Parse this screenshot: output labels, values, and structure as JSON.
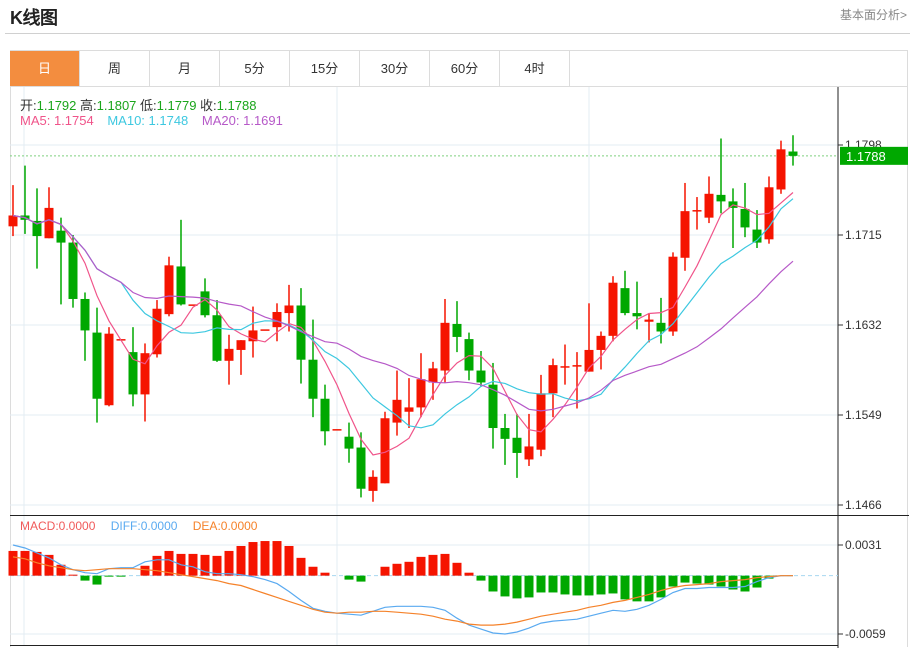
{
  "header": {
    "title": "K线图",
    "link": "基本面分析>"
  },
  "tabs": [
    {
      "label": "日",
      "active": true
    },
    {
      "label": "周"
    },
    {
      "label": "月"
    },
    {
      "label": "5分"
    },
    {
      "label": "15分"
    },
    {
      "label": "30分"
    },
    {
      "label": "60分"
    },
    {
      "label": "4时"
    }
  ],
  "ohlc_legend": [
    {
      "key": "开:",
      "value": "1.1792"
    },
    {
      "key": "高:",
      "value": "1.1807"
    },
    {
      "key": "低:",
      "value": "1.1779"
    },
    {
      "key": "收:",
      "value": "1.1788"
    }
  ],
  "ma_legend": [
    {
      "text": "MA5: 1.1754",
      "color": "#f0548a"
    },
    {
      "text": "MA10: 1.1748",
      "color": "#3dc8e0"
    },
    {
      "text": "MA20: 1.1691",
      "color": "#b659c8"
    }
  ],
  "macd_legend": [
    {
      "text": "MACD:0.0000",
      "color": "#f05a5a"
    },
    {
      "text": "DIFF:0.0000",
      "color": "#5aaaf0"
    },
    {
      "text": "DEA:0.0000",
      "color": "#f5822a"
    }
  ],
  "colors": {
    "up": "#f51400",
    "down": "#00a800",
    "last_price_bg": "#00a800",
    "active_tab": "#f38d3f",
    "grid": "#e3ecf3"
  },
  "chart_data": [
    {
      "type": "candlestick",
      "ylim": [
        1.1466,
        1.1798
      ],
      "y_ticks": [
        "1.1798",
        "1.1715",
        "1.1632",
        "1.1549",
        "1.1466"
      ],
      "last_price": "1.1788",
      "grid": true,
      "ma_periods": [
        5,
        10,
        20
      ],
      "ohlc": [
        [
          1.1723,
          1.1761,
          1.1714,
          1.1733
        ],
        [
          1.1733,
          1.1779,
          1.1716,
          1.1729
        ],
        [
          1.1728,
          1.1758,
          1.1684,
          1.1714
        ],
        [
          1.1712,
          1.1759,
          1.1712,
          1.174
        ],
        [
          1.1719,
          1.1731,
          1.1651,
          1.1708
        ],
        [
          1.1708,
          1.1715,
          1.1648,
          1.1656
        ],
        [
          1.1656,
          1.1662,
          1.1599,
          1.1627
        ],
        [
          1.1625,
          1.1648,
          1.1542,
          1.1564
        ],
        [
          1.1558,
          1.163,
          1.1557,
          1.1624
        ],
        [
          1.1618,
          1.1619,
          1.1618,
          1.1619
        ],
        [
          1.1607,
          1.163,
          1.1557,
          1.1568
        ],
        [
          1.1568,
          1.1615,
          1.1543,
          1.1606
        ],
        [
          1.1605,
          1.1655,
          1.1602,
          1.1647
        ],
        [
          1.1642,
          1.1695,
          1.164,
          1.1687
        ],
        [
          1.1686,
          1.1729,
          1.165,
          1.1651
        ],
        [
          1.1651,
          1.1651,
          1.1651,
          1.1651
        ],
        [
          1.1663,
          1.1675,
          1.1639,
          1.1641
        ],
        [
          1.1641,
          1.1655,
          1.1598,
          1.1599
        ],
        [
          1.1599,
          1.1623,
          1.1577,
          1.161
        ],
        [
          1.1609,
          1.1618,
          1.1586,
          1.1618
        ],
        [
          1.1617,
          1.1649,
          1.1602,
          1.1627
        ],
        [
          1.1628,
          1.1628,
          1.1628,
          1.1628
        ],
        [
          1.163,
          1.1652,
          1.1617,
          1.1644
        ],
        [
          1.1643,
          1.1669,
          1.1626,
          1.165
        ],
        [
          1.165,
          1.1666,
          1.1578,
          1.16
        ],
        [
          1.16,
          1.1637,
          1.1547,
          1.1564
        ],
        [
          1.1564,
          1.1577,
          1.1521,
          1.1534
        ],
        [
          1.1536,
          1.1536,
          1.1536,
          1.1536
        ],
        [
          1.1529,
          1.1542,
          1.1505,
          1.1518
        ],
        [
          1.1519,
          1.1533,
          1.1473,
          1.1481
        ],
        [
          1.1479,
          1.1498,
          1.1469,
          1.1492
        ],
        [
          1.1486,
          1.1552,
          1.1486,
          1.1546
        ],
        [
          1.1542,
          1.159,
          1.153,
          1.1563
        ],
        [
          1.1552,
          1.1583,
          1.1537,
          1.1556
        ],
        [
          1.1556,
          1.1606,
          1.1547,
          1.1582
        ],
        [
          1.1579,
          1.1598,
          1.1563,
          1.1592
        ],
        [
          1.159,
          1.1656,
          1.1579,
          1.1634
        ],
        [
          1.1633,
          1.1654,
          1.1607,
          1.1621
        ],
        [
          1.1619,
          1.1625,
          1.1581,
          1.159
        ],
        [
          1.159,
          1.1608,
          1.1575,
          1.1579
        ],
        [
          1.1577,
          1.1597,
          1.1518,
          1.1537
        ],
        [
          1.1537,
          1.155,
          1.1503,
          1.1527
        ],
        [
          1.1528,
          1.155,
          1.1491,
          1.1514
        ],
        [
          1.1508,
          1.155,
          1.1502,
          1.152
        ],
        [
          1.1517,
          1.1586,
          1.1511,
          1.1569
        ],
        [
          1.1569,
          1.1601,
          1.1547,
          1.1595
        ],
        [
          1.1594,
          1.1614,
          1.1577,
          1.1594
        ],
        [
          1.1595,
          1.1607,
          1.1555,
          1.1595
        ],
        [
          1.1589,
          1.1652,
          1.1589,
          1.1609
        ],
        [
          1.1609,
          1.1626,
          1.1591,
          1.1622
        ],
        [
          1.1622,
          1.1677,
          1.1617,
          1.1671
        ],
        [
          1.1666,
          1.1682,
          1.1641,
          1.1643
        ],
        [
          1.1643,
          1.1672,
          1.1628,
          1.164
        ],
        [
          1.1635,
          1.1643,
          1.1616,
          1.1637
        ],
        [
          1.1634,
          1.1657,
          1.1615,
          1.1626
        ],
        [
          1.1626,
          1.1699,
          1.1622,
          1.1695
        ],
        [
          1.1694,
          1.1763,
          1.1682,
          1.1737
        ],
        [
          1.1738,
          1.175,
          1.172,
          1.1738
        ],
        [
          1.1731,
          1.1769,
          1.1726,
          1.1753
        ],
        [
          1.1752,
          1.1804,
          1.1735,
          1.1746
        ],
        [
          1.1746,
          1.1758,
          1.1703,
          1.174
        ],
        [
          1.1739,
          1.1763,
          1.1713,
          1.1722
        ],
        [
          1.172,
          1.1738,
          1.1703,
          1.1708
        ],
        [
          1.1711,
          1.1769,
          1.1707,
          1.1759
        ],
        [
          1.1757,
          1.1802,
          1.1753,
          1.1794
        ],
        [
          1.1792,
          1.1807,
          1.1779,
          1.1788
        ]
      ]
    },
    {
      "type": "macd",
      "ylim": [
        -0.0059,
        0.0031
      ],
      "y_ticks": [
        "0.0031",
        "-0.0059"
      ],
      "macd": [
        0.0025,
        0.0025,
        0.0024,
        0.0021,
        0.0011,
        0.0001,
        -0.0005,
        -0.0009,
        -0.0001,
        -0.0001,
        0.0,
        0.001,
        0.002,
        0.0025,
        0.0022,
        0.0022,
        0.0021,
        0.002,
        0.0025,
        0.003,
        0.0034,
        0.0035,
        0.0035,
        0.003,
        0.0018,
        0.0009,
        0.0003,
        0.0,
        -0.0004,
        -0.0006,
        0.0,
        0.0009,
        0.0012,
        0.0014,
        0.0019,
        0.0021,
        0.0022,
        0.0013,
        0.0003,
        -0.0005,
        -0.0016,
        -0.0021,
        -0.0023,
        -0.0022,
        -0.0017,
        -0.0017,
        -0.0019,
        -0.002,
        -0.002,
        -0.0019,
        -0.0018,
        -0.0024,
        -0.0026,
        -0.0026,
        -0.0022,
        -0.0011,
        -0.0007,
        -0.0008,
        -0.0009,
        -0.0011,
        -0.0014,
        -0.0016,
        -0.0012,
        -0.0003,
        0.0,
        0.0
      ],
      "diff": [
        0.0031,
        0.0028,
        0.0023,
        0.0018,
        0.0011,
        0.0006,
        0.0003,
        0.0002,
        0.0007,
        0.0008,
        0.0008,
        0.0014,
        0.0016,
        0.0016,
        0.0011,
        0.0009,
        0.0004,
        0.0002,
        0.0002,
        0.0001,
        -0.0001,
        -0.0004,
        -0.0008,
        -0.0016,
        -0.0025,
        -0.0033,
        -0.0036,
        -0.0038,
        -0.0039,
        -0.004,
        -0.0036,
        -0.0032,
        -0.0031,
        -0.0031,
        -0.0031,
        -0.0032,
        -0.0035,
        -0.0043,
        -0.005,
        -0.0054,
        -0.0058,
        -0.0059,
        -0.0057,
        -0.0053,
        -0.0048,
        -0.0046,
        -0.0045,
        -0.0044,
        -0.0041,
        -0.0038,
        -0.0035,
        -0.0036,
        -0.0034,
        -0.003,
        -0.0024,
        -0.0017,
        -0.0013,
        -0.0013,
        -0.0012,
        -0.0012,
        -0.0012,
        -0.0011,
        -0.0006,
        -0.0002,
        0.0,
        0.0
      ],
      "dea": [
        0.0019,
        0.0017,
        0.0013,
        0.001,
        0.0008,
        0.0006,
        0.0005,
        0.0006,
        0.0007,
        0.0007,
        0.0007,
        0.0006,
        0.0005,
        0.0003,
        0.0001,
        -0.0001,
        -0.0003,
        -0.0005,
        -0.0008,
        -0.001,
        -0.0014,
        -0.0018,
        -0.0022,
        -0.0026,
        -0.003,
        -0.0034,
        -0.0037,
        -0.0038,
        -0.0037,
        -0.0037,
        -0.0036,
        -0.0036,
        -0.0037,
        -0.0038,
        -0.0039,
        -0.0041,
        -0.0044,
        -0.0046,
        -0.0049,
        -0.005,
        -0.005,
        -0.0049,
        -0.0047,
        -0.0044,
        -0.0041,
        -0.0039,
        -0.0037,
        -0.0035,
        -0.0032,
        -0.003,
        -0.0027,
        -0.0025,
        -0.0022,
        -0.0019,
        -0.0015,
        -0.0012,
        -0.001,
        -0.0009,
        -0.0008,
        -0.0006,
        -0.0005,
        -0.0004,
        -0.0002,
        -0.0001,
        0.0,
        0.0
      ]
    }
  ]
}
